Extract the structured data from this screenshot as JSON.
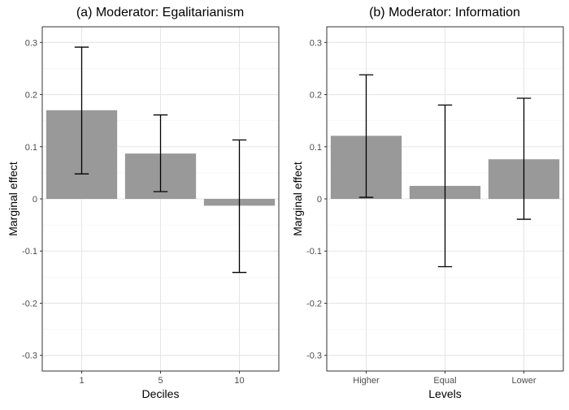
{
  "chart_data": [
    {
      "type": "bar",
      "title": "(a) Moderator: Egalitarianism",
      "xlabel": "Deciles",
      "ylabel": "Marginal effect",
      "categories": [
        "1",
        "5",
        "10"
      ],
      "values": [
        0.17,
        0.087,
        -0.013
      ],
      "error_low": [
        0.048,
        0.014,
        -0.141
      ],
      "error_high": [
        0.291,
        0.161,
        0.113
      ],
      "ylim": [
        -0.33,
        0.33
      ],
      "yticks": [
        -0.3,
        -0.2,
        -0.1,
        0,
        0.1,
        0.2,
        0.3
      ],
      "ytick_labels": [
        "-0.3",
        "-0.2",
        "-0.1",
        "0",
        "0.1",
        "0.2",
        "0.3"
      ],
      "grid": true,
      "bar_color": "#999999"
    },
    {
      "type": "bar",
      "title": "(b) Moderator: Information",
      "xlabel": "Levels",
      "ylabel": "Marginal effect",
      "categories": [
        "Higher",
        "Equal",
        "Lower"
      ],
      "values": [
        0.121,
        0.025,
        0.076
      ],
      "error_low": [
        0.003,
        -0.13,
        -0.039
      ],
      "error_high": [
        0.238,
        0.18,
        0.193
      ],
      "ylim": [
        -0.33,
        0.33
      ],
      "yticks": [
        -0.3,
        -0.2,
        -0.1,
        0,
        0.1,
        0.2,
        0.3
      ],
      "ytick_labels": [
        "-0.3",
        "-0.2",
        "-0.1",
        "0",
        "0.1",
        "0.2",
        "0.3"
      ],
      "grid": true,
      "bar_color": "#999999"
    }
  ]
}
